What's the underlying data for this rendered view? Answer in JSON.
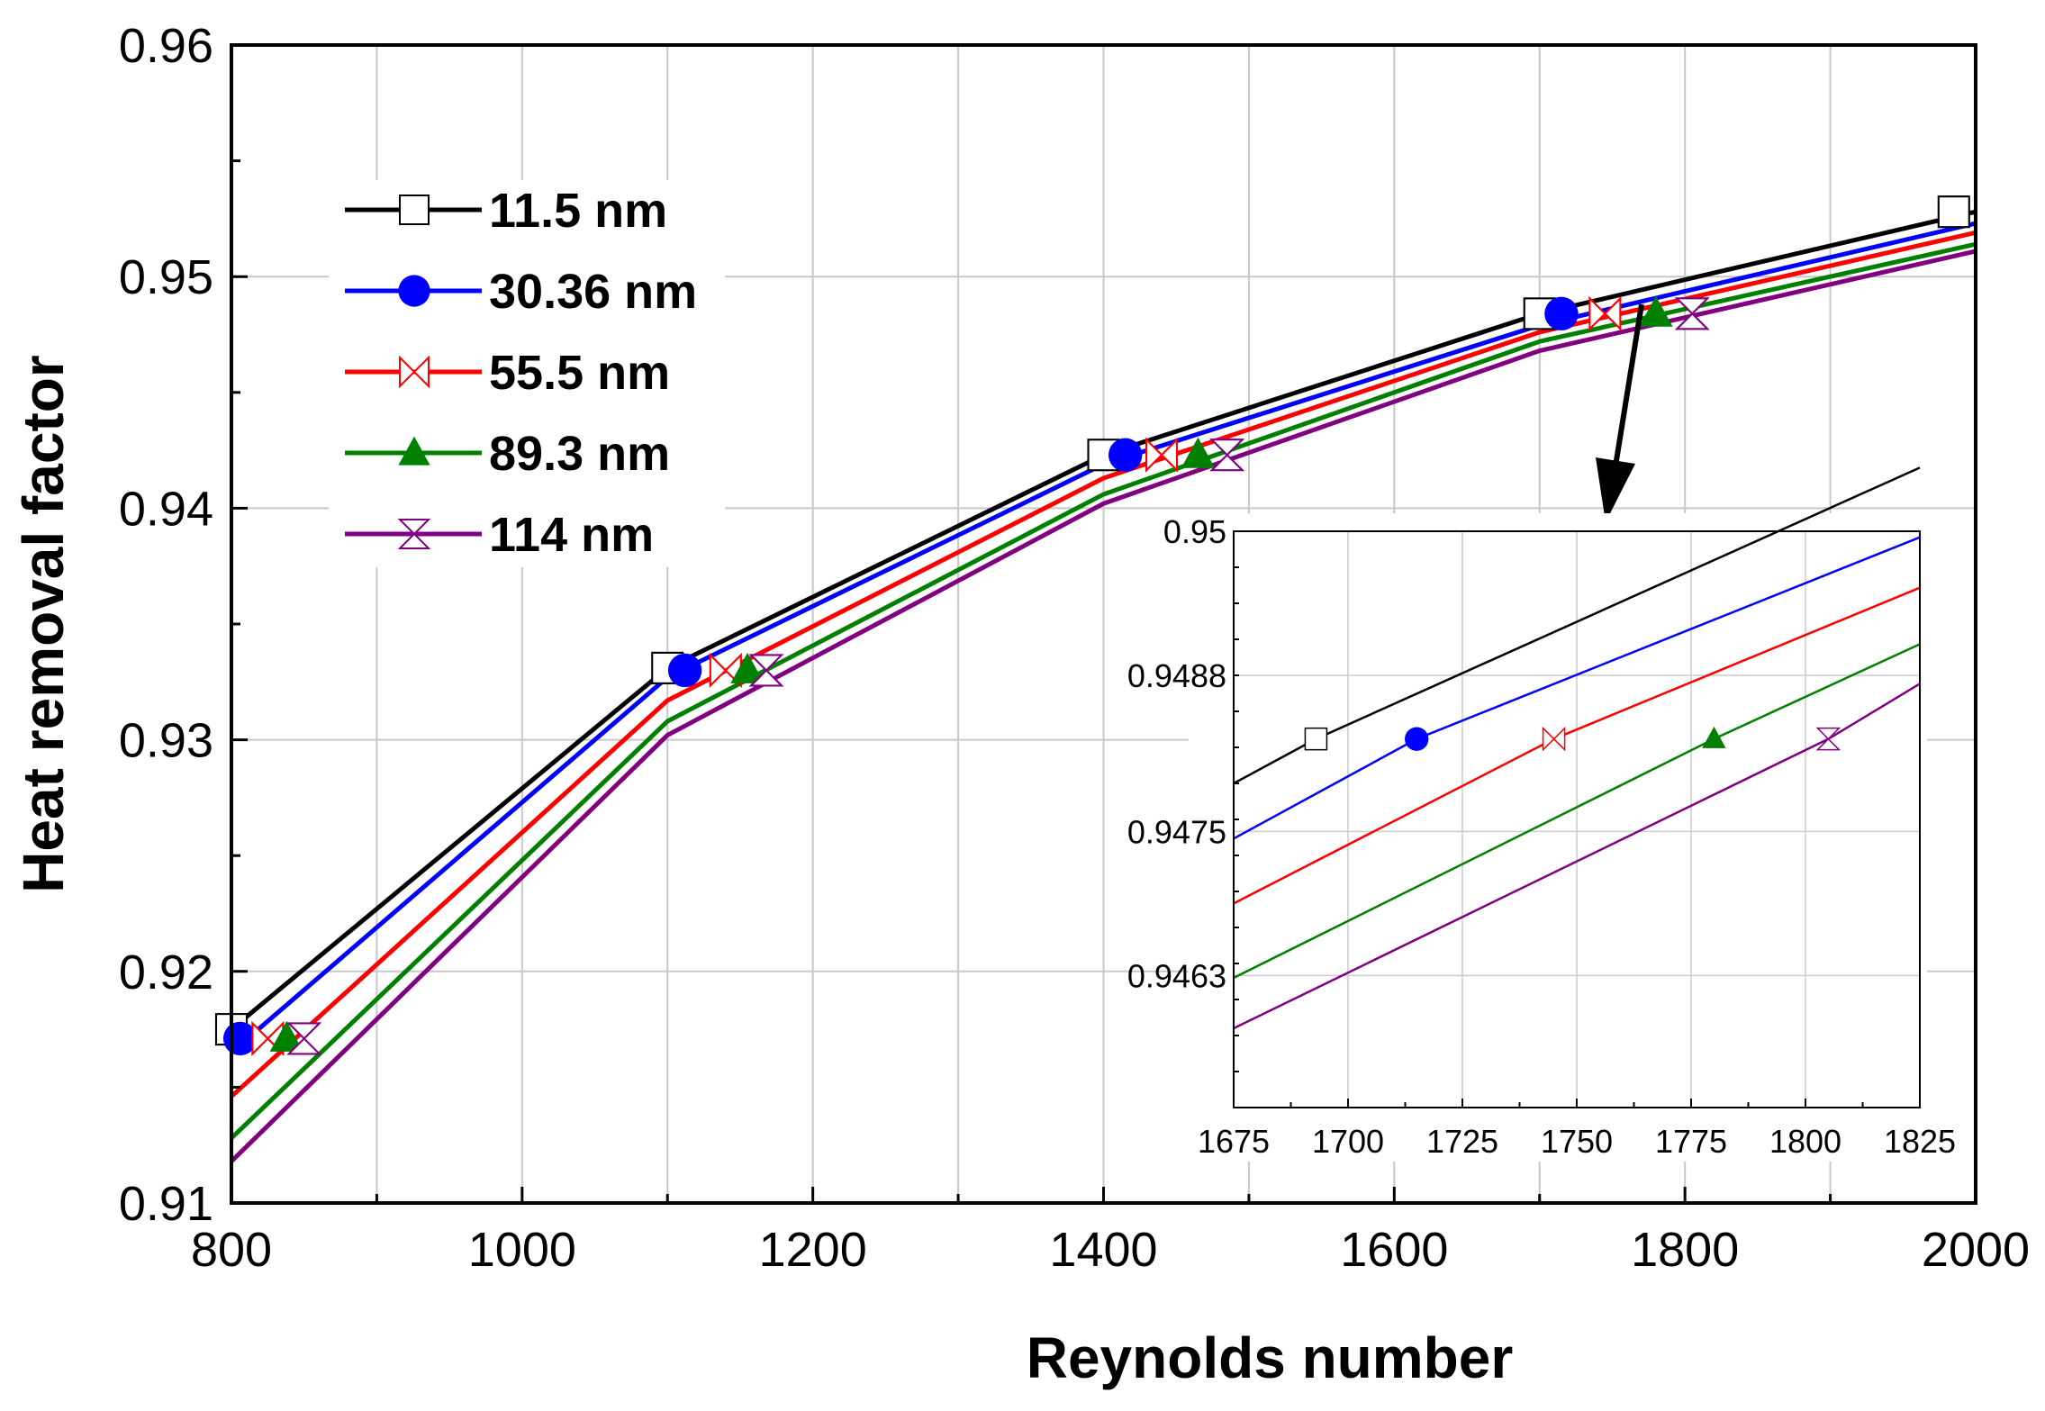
{
  "chart_data": {
    "type": "line",
    "title": "",
    "xlabel": "Reynolds number",
    "ylabel": "Heat removal factor",
    "xlim": [
      800,
      2000
    ],
    "ylim": [
      0.91,
      0.96
    ],
    "xticks": [
      800,
      1000,
      1200,
      1400,
      1600,
      1800,
      2000
    ],
    "xtick_labels": [
      "800",
      "1000",
      "1200",
      "1400",
      "1600",
      "1800",
      "2000"
    ],
    "yticks": [
      0.91,
      0.92,
      0.93,
      0.94,
      0.95,
      0.96
    ],
    "ytick_labels": [
      "0.91",
      "0.92",
      "0.93",
      "0.94",
      "0.95",
      "0.96"
    ],
    "grid": true,
    "legend_position": "top-left",
    "series": [
      {
        "name": "11.5 nm",
        "color": "#000000",
        "marker": "square-open",
        "x": [
          800,
          1100,
          1400,
          1700,
          2000
        ],
        "y": [
          0.9175,
          0.9331,
          0.9423,
          0.9484,
          0.9528
        ],
        "marker_x": [
          800,
          1100,
          1400,
          1700,
          1985
        ],
        "marker_y": [
          0.9175,
          0.9331,
          0.9423,
          0.9484,
          0.9528
        ]
      },
      {
        "name": "30.36 nm",
        "color": "#0000ff",
        "marker": "circle-filled",
        "x": [
          800,
          1100,
          1400,
          1700,
          2000
        ],
        "y": [
          0.9165,
          0.9327,
          0.9419,
          0.9479,
          0.9523
        ],
        "marker_x": [
          806,
          1112,
          1415,
          1715
        ],
        "marker_y": [
          0.9171,
          0.933,
          0.9423,
          0.9484
        ]
      },
      {
        "name": "55.5 nm",
        "color": "#ff0000",
        "marker": "bowtie-open",
        "x": [
          800,
          1100,
          1400,
          1700,
          2000
        ],
        "y": [
          0.9146,
          0.9317,
          0.9413,
          0.9476,
          0.9519
        ],
        "marker_x": [
          825,
          1140,
          1440,
          1745
        ],
        "marker_y": [
          0.9171,
          0.933,
          0.9423,
          0.9484
        ]
      },
      {
        "name": "89.3 nm",
        "color": "#008000",
        "marker": "triangle-filled",
        "x": [
          800,
          1100,
          1400,
          1700,
          2000
        ],
        "y": [
          0.9128,
          0.9308,
          0.9406,
          0.9472,
          0.9514
        ],
        "marker_x": [
          838,
          1155,
          1465,
          1780
        ],
        "marker_y": [
          0.9171,
          0.933,
          0.9423,
          0.9484
        ]
      },
      {
        "name": "114 nm",
        "color": "#800080",
        "marker": "hourglass-open",
        "x": [
          800,
          1100,
          1400,
          1700,
          2000
        ],
        "y": [
          0.9118,
          0.9302,
          0.9402,
          0.9468,
          0.9511
        ],
        "marker_x": [
          850,
          1168,
          1485,
          1805
        ],
        "marker_y": [
          0.9171,
          0.933,
          0.9423,
          0.9484
        ]
      }
    ],
    "inset": {
      "xlim": [
        1675,
        1825
      ],
      "ylim": [
        0.9452,
        0.95
      ],
      "xticks": [
        1675,
        1700,
        1725,
        1750,
        1775,
        1800,
        1825
      ],
      "xtick_labels": [
        "1675",
        "1700",
        "1725",
        "1750",
        "1775",
        "1800",
        "1825"
      ],
      "yticks": [
        0.9463,
        0.9475,
        0.9488,
        0.95
      ],
      "ytick_labels": [
        "0.9463",
        "0.9475",
        "0.9488",
        "0.95"
      ],
      "series": [
        {
          "name": "11.5 nm",
          "x": [
            1675,
            1693,
            1825
          ],
          "y": [
            0.9479,
            0.94827,
            0.95053
          ],
          "marker_x": [
            1693
          ],
          "marker_y": [
            0.94827
          ]
        },
        {
          "name": "30.36 nm",
          "x": [
            1675,
            1715,
            1825
          ],
          "y": [
            0.94744,
            0.94827,
            0.94995
          ],
          "marker_x": [
            1715
          ],
          "marker_y": [
            0.94827
          ]
        },
        {
          "name": "55.5 nm",
          "x": [
            1675,
            1745,
            1825
          ],
          "y": [
            0.9469,
            0.94827,
            0.94953
          ],
          "marker_x": [
            1745
          ],
          "marker_y": [
            0.94827
          ]
        },
        {
          "name": "89.3 nm",
          "x": [
            1675,
            1780,
            1825
          ],
          "y": [
            0.94628,
            0.94827,
            0.94906
          ],
          "marker_x": [
            1780
          ],
          "marker_y": [
            0.94827
          ]
        },
        {
          "name": "114 nm",
          "x": [
            1675,
            1805,
            1825
          ],
          "y": [
            0.94586,
            0.94827,
            0.94873
          ],
          "marker_x": [
            1805
          ],
          "marker_y": [
            0.94827
          ]
        }
      ]
    }
  }
}
